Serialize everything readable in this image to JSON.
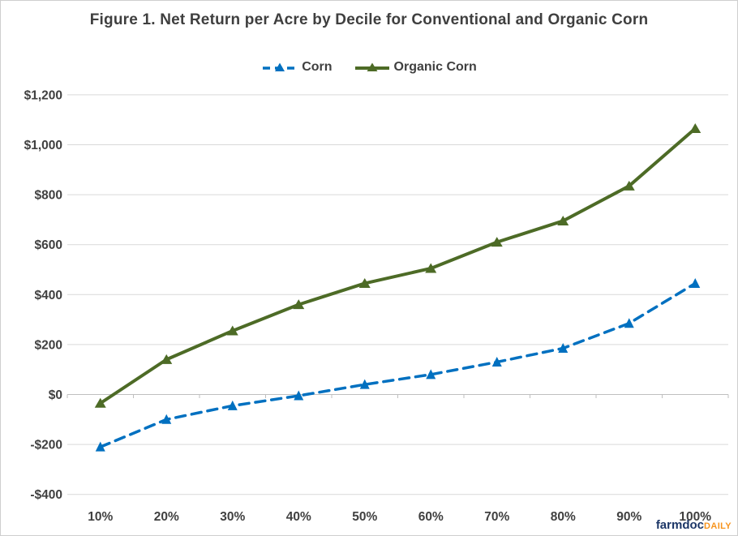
{
  "title": "Figure 1. Net Return per Acre by Decile for Conventional and Organic Corn",
  "logo": {
    "brand": "farmdoc",
    "daily": "DAILY"
  },
  "colors": {
    "text": "#404040",
    "title_text": "#3f3f3f",
    "gridline": "#d9d9d9",
    "axis_line": "#bfbfbf",
    "corn_blue": "#0070c0",
    "organic_green": "#4d6b26",
    "logo_navy": "#1c3667",
    "logo_orange": "#f7941e"
  },
  "chart_data": {
    "type": "line",
    "title": "Figure 1. Net Return per Acre by Decile for Conventional and Organic Corn",
    "categories": [
      "10%",
      "20%",
      "30%",
      "40%",
      "50%",
      "60%",
      "70%",
      "80%",
      "90%",
      "100%"
    ],
    "series": [
      {
        "name": "Corn",
        "values": [
          -210,
          -100,
          -45,
          -5,
          40,
          80,
          130,
          185,
          285,
          445
        ],
        "color": "#0070c0",
        "line_style": "dashed",
        "marker": "triangle"
      },
      {
        "name": "Organic Corn",
        "values": [
          -35,
          140,
          255,
          360,
          445,
          505,
          610,
          695,
          835,
          1065
        ],
        "color": "#4d6b26",
        "line_style": "solid",
        "marker": "triangle"
      }
    ],
    "xlabel": "",
    "ylabel": "",
    "ylim": [
      -400,
      1200
    ],
    "y_tick_values": [
      1200,
      1000,
      800,
      600,
      400,
      200,
      0,
      -200,
      -400
    ],
    "y_tick_labels": [
      "$1,200",
      "$1,000",
      "$800",
      "$600",
      "$400",
      "$200",
      "$0",
      "-$200",
      "-$400"
    ],
    "grid": true,
    "axis_cross_at": 0,
    "legend_position": "top"
  }
}
